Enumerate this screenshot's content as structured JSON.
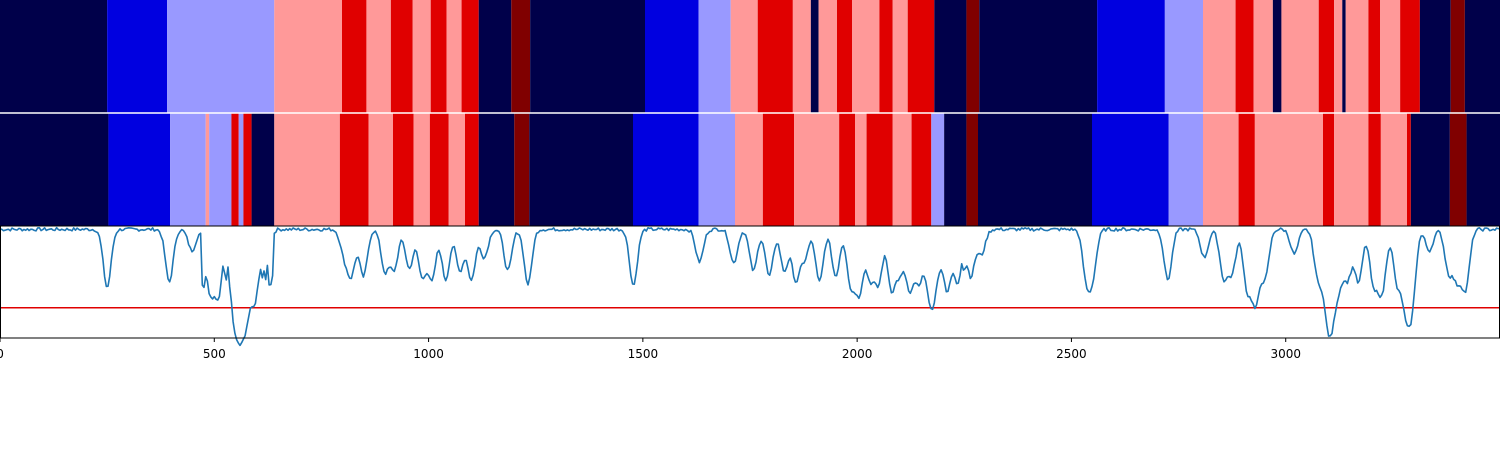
{
  "chart_data": [
    {
      "type": "heatmap",
      "name": "segmentation-track-1",
      "x_range": [
        0,
        3500
      ],
      "segments": [
        {
          "start": 0,
          "end": 250,
          "color": "#00004a"
        },
        {
          "start": 250,
          "end": 390,
          "color": "#0000e0"
        },
        {
          "start": 390,
          "end": 640,
          "color": "#9999ff"
        },
        {
          "start": 640,
          "end": 798,
          "color": "#ff9999"
        },
        {
          "start": 798,
          "end": 855,
          "color": "#e00000"
        },
        {
          "start": 855,
          "end": 912,
          "color": "#ff9999"
        },
        {
          "start": 912,
          "end": 963,
          "color": "#e00000"
        },
        {
          "start": 963,
          "end": 1005,
          "color": "#ff9999"
        },
        {
          "start": 1005,
          "end": 1042,
          "color": "#e00000"
        },
        {
          "start": 1042,
          "end": 1077,
          "color": "#ff9999"
        },
        {
          "start": 1077,
          "end": 1117,
          "color": "#e00000"
        },
        {
          "start": 1117,
          "end": 1193,
          "color": "#00004a"
        },
        {
          "start": 1193,
          "end": 1237,
          "color": "#800000"
        },
        {
          "start": 1237,
          "end": 1505,
          "color": "#00004a"
        },
        {
          "start": 1505,
          "end": 1630,
          "color": "#0000e0"
        },
        {
          "start": 1630,
          "end": 1705,
          "color": "#9999ff"
        },
        {
          "start": 1705,
          "end": 1768,
          "color": "#ff9999"
        },
        {
          "start": 1768,
          "end": 1850,
          "color": "#e00000"
        },
        {
          "start": 1850,
          "end": 1892,
          "color": "#ff9999"
        },
        {
          "start": 1892,
          "end": 1910,
          "color": "#00004a"
        },
        {
          "start": 1910,
          "end": 1953,
          "color": "#ff9999"
        },
        {
          "start": 1953,
          "end": 1988,
          "color": "#e00000"
        },
        {
          "start": 1988,
          "end": 2052,
          "color": "#ff9999"
        },
        {
          "start": 2052,
          "end": 2083,
          "color": "#e00000"
        },
        {
          "start": 2083,
          "end": 2118,
          "color": "#ff9999"
        },
        {
          "start": 2118,
          "end": 2180,
          "color": "#e00000"
        },
        {
          "start": 2180,
          "end": 2255,
          "color": "#00004a"
        },
        {
          "start": 2255,
          "end": 2285,
          "color": "#800000"
        },
        {
          "start": 2285,
          "end": 2560,
          "color": "#00004a"
        },
        {
          "start": 2560,
          "end": 2718,
          "color": "#0000e0"
        },
        {
          "start": 2718,
          "end": 2807,
          "color": "#9999ff"
        },
        {
          "start": 2807,
          "end": 2883,
          "color": "#ff9999"
        },
        {
          "start": 2883,
          "end": 2925,
          "color": "#e00000"
        },
        {
          "start": 2925,
          "end": 2970,
          "color": "#ff9999"
        },
        {
          "start": 2970,
          "end": 2990,
          "color": "#00004a"
        },
        {
          "start": 2990,
          "end": 3077,
          "color": "#ff9999"
        },
        {
          "start": 3077,
          "end": 3113,
          "color": "#e00000"
        },
        {
          "start": 3113,
          "end": 3132,
          "color": "#ff9999"
        },
        {
          "start": 3132,
          "end": 3140,
          "color": "#00004a"
        },
        {
          "start": 3140,
          "end": 3193,
          "color": "#ff9999"
        },
        {
          "start": 3193,
          "end": 3220,
          "color": "#e00000"
        },
        {
          "start": 3220,
          "end": 3267,
          "color": "#ff9999"
        },
        {
          "start": 3267,
          "end": 3313,
          "color": "#e00000"
        },
        {
          "start": 3313,
          "end": 3385,
          "color": "#00004a"
        },
        {
          "start": 3385,
          "end": 3418,
          "color": "#800000"
        },
        {
          "start": 3418,
          "end": 3500,
          "color": "#00004a"
        }
      ]
    },
    {
      "type": "heatmap",
      "name": "segmentation-track-2",
      "x_range": [
        0,
        3500
      ],
      "segments": [
        {
          "start": 0,
          "end": 253,
          "color": "#00004a"
        },
        {
          "start": 253,
          "end": 397,
          "color": "#0000e0"
        },
        {
          "start": 397,
          "end": 480,
          "color": "#9999ff"
        },
        {
          "start": 480,
          "end": 488,
          "color": "#ff9999"
        },
        {
          "start": 488,
          "end": 540,
          "color": "#9999ff"
        },
        {
          "start": 540,
          "end": 557,
          "color": "#e00000"
        },
        {
          "start": 557,
          "end": 568,
          "color": "#9999ff"
        },
        {
          "start": 568,
          "end": 587,
          "color": "#e00000"
        },
        {
          "start": 587,
          "end": 640,
          "color": "#00004a"
        },
        {
          "start": 640,
          "end": 793,
          "color": "#ff9999"
        },
        {
          "start": 793,
          "end": 860,
          "color": "#e00000"
        },
        {
          "start": 860,
          "end": 917,
          "color": "#ff9999"
        },
        {
          "start": 917,
          "end": 965,
          "color": "#e00000"
        },
        {
          "start": 965,
          "end": 1003,
          "color": "#ff9999"
        },
        {
          "start": 1003,
          "end": 1047,
          "color": "#e00000"
        },
        {
          "start": 1047,
          "end": 1085,
          "color": "#ff9999"
        },
        {
          "start": 1085,
          "end": 1117,
          "color": "#e00000"
        },
        {
          "start": 1117,
          "end": 1200,
          "color": "#00004a"
        },
        {
          "start": 1200,
          "end": 1235,
          "color": "#800000"
        },
        {
          "start": 1235,
          "end": 1477,
          "color": "#00004a"
        },
        {
          "start": 1477,
          "end": 1630,
          "color": "#0000e0"
        },
        {
          "start": 1630,
          "end": 1715,
          "color": "#9999ff"
        },
        {
          "start": 1715,
          "end": 1780,
          "color": "#ff9999"
        },
        {
          "start": 1780,
          "end": 1853,
          "color": "#e00000"
        },
        {
          "start": 1853,
          "end": 1958,
          "color": "#ff9999"
        },
        {
          "start": 1958,
          "end": 1995,
          "color": "#e00000"
        },
        {
          "start": 1995,
          "end": 2022,
          "color": "#ff9999"
        },
        {
          "start": 2022,
          "end": 2083,
          "color": "#e00000"
        },
        {
          "start": 2083,
          "end": 2127,
          "color": "#ff9999"
        },
        {
          "start": 2127,
          "end": 2173,
          "color": "#e00000"
        },
        {
          "start": 2173,
          "end": 2203,
          "color": "#9999ff"
        },
        {
          "start": 2203,
          "end": 2255,
          "color": "#00004a"
        },
        {
          "start": 2255,
          "end": 2282,
          "color": "#800000"
        },
        {
          "start": 2282,
          "end": 2548,
          "color": "#00004a"
        },
        {
          "start": 2548,
          "end": 2727,
          "color": "#0000e0"
        },
        {
          "start": 2727,
          "end": 2807,
          "color": "#9999ff"
        },
        {
          "start": 2807,
          "end": 2890,
          "color": "#ff9999"
        },
        {
          "start": 2890,
          "end": 2928,
          "color": "#e00000"
        },
        {
          "start": 2928,
          "end": 3087,
          "color": "#ff9999"
        },
        {
          "start": 3087,
          "end": 3113,
          "color": "#e00000"
        },
        {
          "start": 3113,
          "end": 3193,
          "color": "#ff9999"
        },
        {
          "start": 3193,
          "end": 3222,
          "color": "#e00000"
        },
        {
          "start": 3222,
          "end": 3283,
          "color": "#ff9999"
        },
        {
          "start": 3283,
          "end": 3292,
          "color": "#e00000"
        },
        {
          "start": 3292,
          "end": 3383,
          "color": "#00004a"
        },
        {
          "start": 3383,
          "end": 3422,
          "color": "#800000"
        },
        {
          "start": 3422,
          "end": 3500,
          "color": "#00004a"
        }
      ]
    },
    {
      "type": "line",
      "name": "signal-trace",
      "color": "#1f77b4",
      "threshold": {
        "y": 0.27,
        "color": "#e00000"
      },
      "xlim": [
        0,
        3500
      ],
      "ylim": [
        0,
        1
      ],
      "x_ticks": [
        0,
        500,
        1000,
        1500,
        2000,
        2500,
        3000
      ],
      "x_tick_labels": [
        "0",
        "500",
        "1000",
        "1500",
        "2000",
        "2500",
        "3000"
      ],
      "baseline": 0.97,
      "dips": [
        {
          "x": 250,
          "y": 0.45
        },
        {
          "x": 395,
          "y": 0.5
        },
        {
          "x": 448,
          "y": 0.78
        },
        {
          "x": 490,
          "y": 0.42
        },
        {
          "x": 510,
          "y": 0.4
        },
        {
          "x": 545,
          "y": 0.3
        },
        {
          "x": 560,
          "y": 0.28
        },
        {
          "x": 575,
          "y": 0.3
        },
        {
          "x": 595,
          "y": 0.36
        },
        {
          "x": 620,
          "y": 0.62
        },
        {
          "x": 803,
          "y": 0.75
        },
        {
          "x": 820,
          "y": 0.58
        },
        {
          "x": 848,
          "y": 0.55
        },
        {
          "x": 898,
          "y": 0.6
        },
        {
          "x": 920,
          "y": 0.62
        },
        {
          "x": 955,
          "y": 0.62
        },
        {
          "x": 985,
          "y": 0.55
        },
        {
          "x": 1008,
          "y": 0.52
        },
        {
          "x": 1040,
          "y": 0.52
        },
        {
          "x": 1073,
          "y": 0.6
        },
        {
          "x": 1100,
          "y": 0.52
        },
        {
          "x": 1130,
          "y": 0.72
        },
        {
          "x": 1185,
          "y": 0.6
        },
        {
          "x": 1232,
          "y": 0.48
        },
        {
          "x": 1478,
          "y": 0.47
        },
        {
          "x": 1632,
          "y": 0.68
        },
        {
          "x": 1712,
          "y": 0.67
        },
        {
          "x": 1758,
          "y": 0.6
        },
        {
          "x": 1795,
          "y": 0.55
        },
        {
          "x": 1830,
          "y": 0.6
        },
        {
          "x": 1857,
          "y": 0.52
        },
        {
          "x": 1878,
          "y": 0.72
        },
        {
          "x": 1912,
          "y": 0.5
        },
        {
          "x": 1950,
          "y": 0.55
        },
        {
          "x": 1985,
          "y": 0.48
        },
        {
          "x": 2005,
          "y": 0.42
        },
        {
          "x": 2030,
          "y": 0.55
        },
        {
          "x": 2050,
          "y": 0.5
        },
        {
          "x": 2080,
          "y": 0.45
        },
        {
          "x": 2100,
          "y": 0.6
        },
        {
          "x": 2123,
          "y": 0.43
        },
        {
          "x": 2145,
          "y": 0.5
        },
        {
          "x": 2170,
          "y": 0.37
        },
        {
          "x": 2185,
          "y": 0.6
        },
        {
          "x": 2210,
          "y": 0.42
        },
        {
          "x": 2235,
          "y": 0.5
        },
        {
          "x": 2265,
          "y": 0.55
        },
        {
          "x": 2290,
          "y": 0.75
        },
        {
          "x": 2535,
          "y": 0.55
        },
        {
          "x": 2550,
          "y": 0.6
        },
        {
          "x": 2725,
          "y": 0.52
        },
        {
          "x": 2810,
          "y": 0.72
        },
        {
          "x": 2855,
          "y": 0.55
        },
        {
          "x": 2875,
          "y": 0.6
        },
        {
          "x": 2910,
          "y": 0.45
        },
        {
          "x": 2930,
          "y": 0.33
        },
        {
          "x": 2952,
          "y": 0.55
        },
        {
          "x": 3020,
          "y": 0.75
        },
        {
          "x": 3075,
          "y": 0.55
        },
        {
          "x": 3095,
          "y": 0.4
        },
        {
          "x": 3108,
          "y": 0.32
        },
        {
          "x": 3125,
          "y": 0.55
        },
        {
          "x": 3145,
          "y": 0.55
        },
        {
          "x": 3170,
          "y": 0.5
        },
        {
          "x": 3205,
          "y": 0.48
        },
        {
          "x": 3225,
          "y": 0.42
        },
        {
          "x": 3260,
          "y": 0.5
        },
        {
          "x": 3280,
          "y": 0.34
        },
        {
          "x": 3295,
          "y": 0.36
        },
        {
          "x": 3335,
          "y": 0.78
        },
        {
          "x": 3380,
          "y": 0.6
        },
        {
          "x": 3400,
          "y": 0.55
        },
        {
          "x": 3420,
          "y": 0.45
        }
      ]
    }
  ]
}
